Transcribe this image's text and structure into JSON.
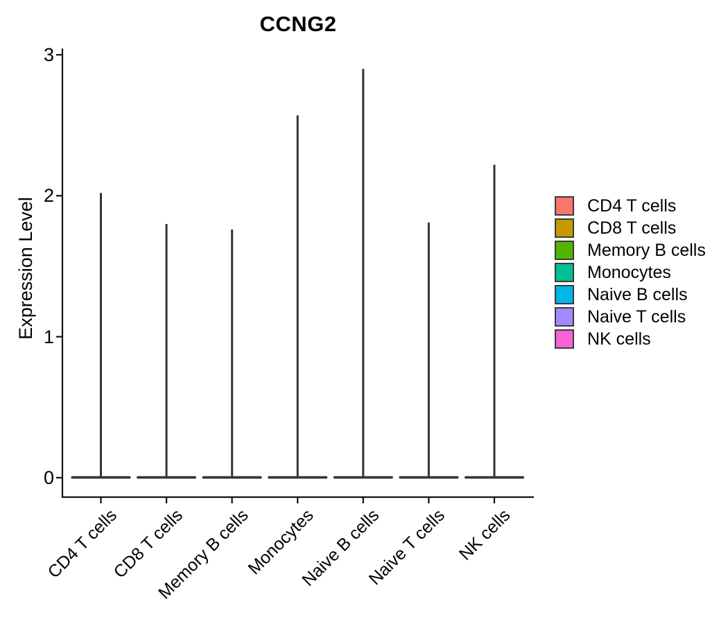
{
  "title": "CCNG2",
  "y_axis": {
    "label": "Expression Level",
    "tick_labels": [
      "0",
      "1",
      "2",
      "3"
    ],
    "range": [
      0,
      3
    ]
  },
  "x_axis": {
    "categories": [
      "CD4 T cells",
      "CD8 T cells",
      "Memory B cells",
      "Monocytes",
      "Naive B cells",
      "Naive T cells",
      "NK cells"
    ]
  },
  "legend": {
    "position": "right",
    "swatch_border_color": "#3A3A3A",
    "items": [
      {
        "label": "CD4 T cells",
        "color": "#F8766D"
      },
      {
        "label": "CD8 T cells",
        "color": "#C49A00"
      },
      {
        "label": "Memory B cells",
        "color": "#53B400"
      },
      {
        "label": "Monocytes",
        "color": "#00C094"
      },
      {
        "label": "Naive B cells",
        "color": "#00B6EB"
      },
      {
        "label": "Naive T cells",
        "color": "#A58AFF"
      },
      {
        "label": "NK cells",
        "color": "#FB61D7"
      }
    ]
  },
  "chart_data": {
    "type": "violin",
    "title": "CCNG2",
    "xlabel": "",
    "ylabel": "Expression Level",
    "ylim": [
      0,
      3
    ],
    "yticks": [
      0,
      1,
      2,
      3
    ],
    "grid": false,
    "legend_position": "right",
    "violin_outline_color": "#333333",
    "axis_color": "#111111",
    "description": "Single-cell expression violin plot; each violin is concentrated at expression 0 (flat wide base) with a thin spike extending to the maximum expression value.",
    "categories": [
      "CD4 T cells",
      "CD8 T cells",
      "Memory B cells",
      "Monocytes",
      "Naive B cells",
      "Naive T cells",
      "NK cells"
    ],
    "series": [
      {
        "name": "CD4 T cells",
        "color": "#F8766D",
        "density_mode": 0,
        "max_expression": 2.02
      },
      {
        "name": "CD8 T cells",
        "color": "#C49A00",
        "density_mode": 0,
        "max_expression": 1.8
      },
      {
        "name": "Memory B cells",
        "color": "#53B400",
        "density_mode": 0,
        "max_expression": 1.76
      },
      {
        "name": "Monocytes",
        "color": "#00C094",
        "density_mode": 0,
        "max_expression": 2.57
      },
      {
        "name": "Naive B cells",
        "color": "#00B6EB",
        "density_mode": 0,
        "max_expression": 2.9
      },
      {
        "name": "Naive T cells",
        "color": "#A58AFF",
        "density_mode": 0,
        "max_expression": 1.81
      },
      {
        "name": "NK cells",
        "color": "#FB61D7",
        "density_mode": 0,
        "max_expression": 2.22
      }
    ]
  }
}
